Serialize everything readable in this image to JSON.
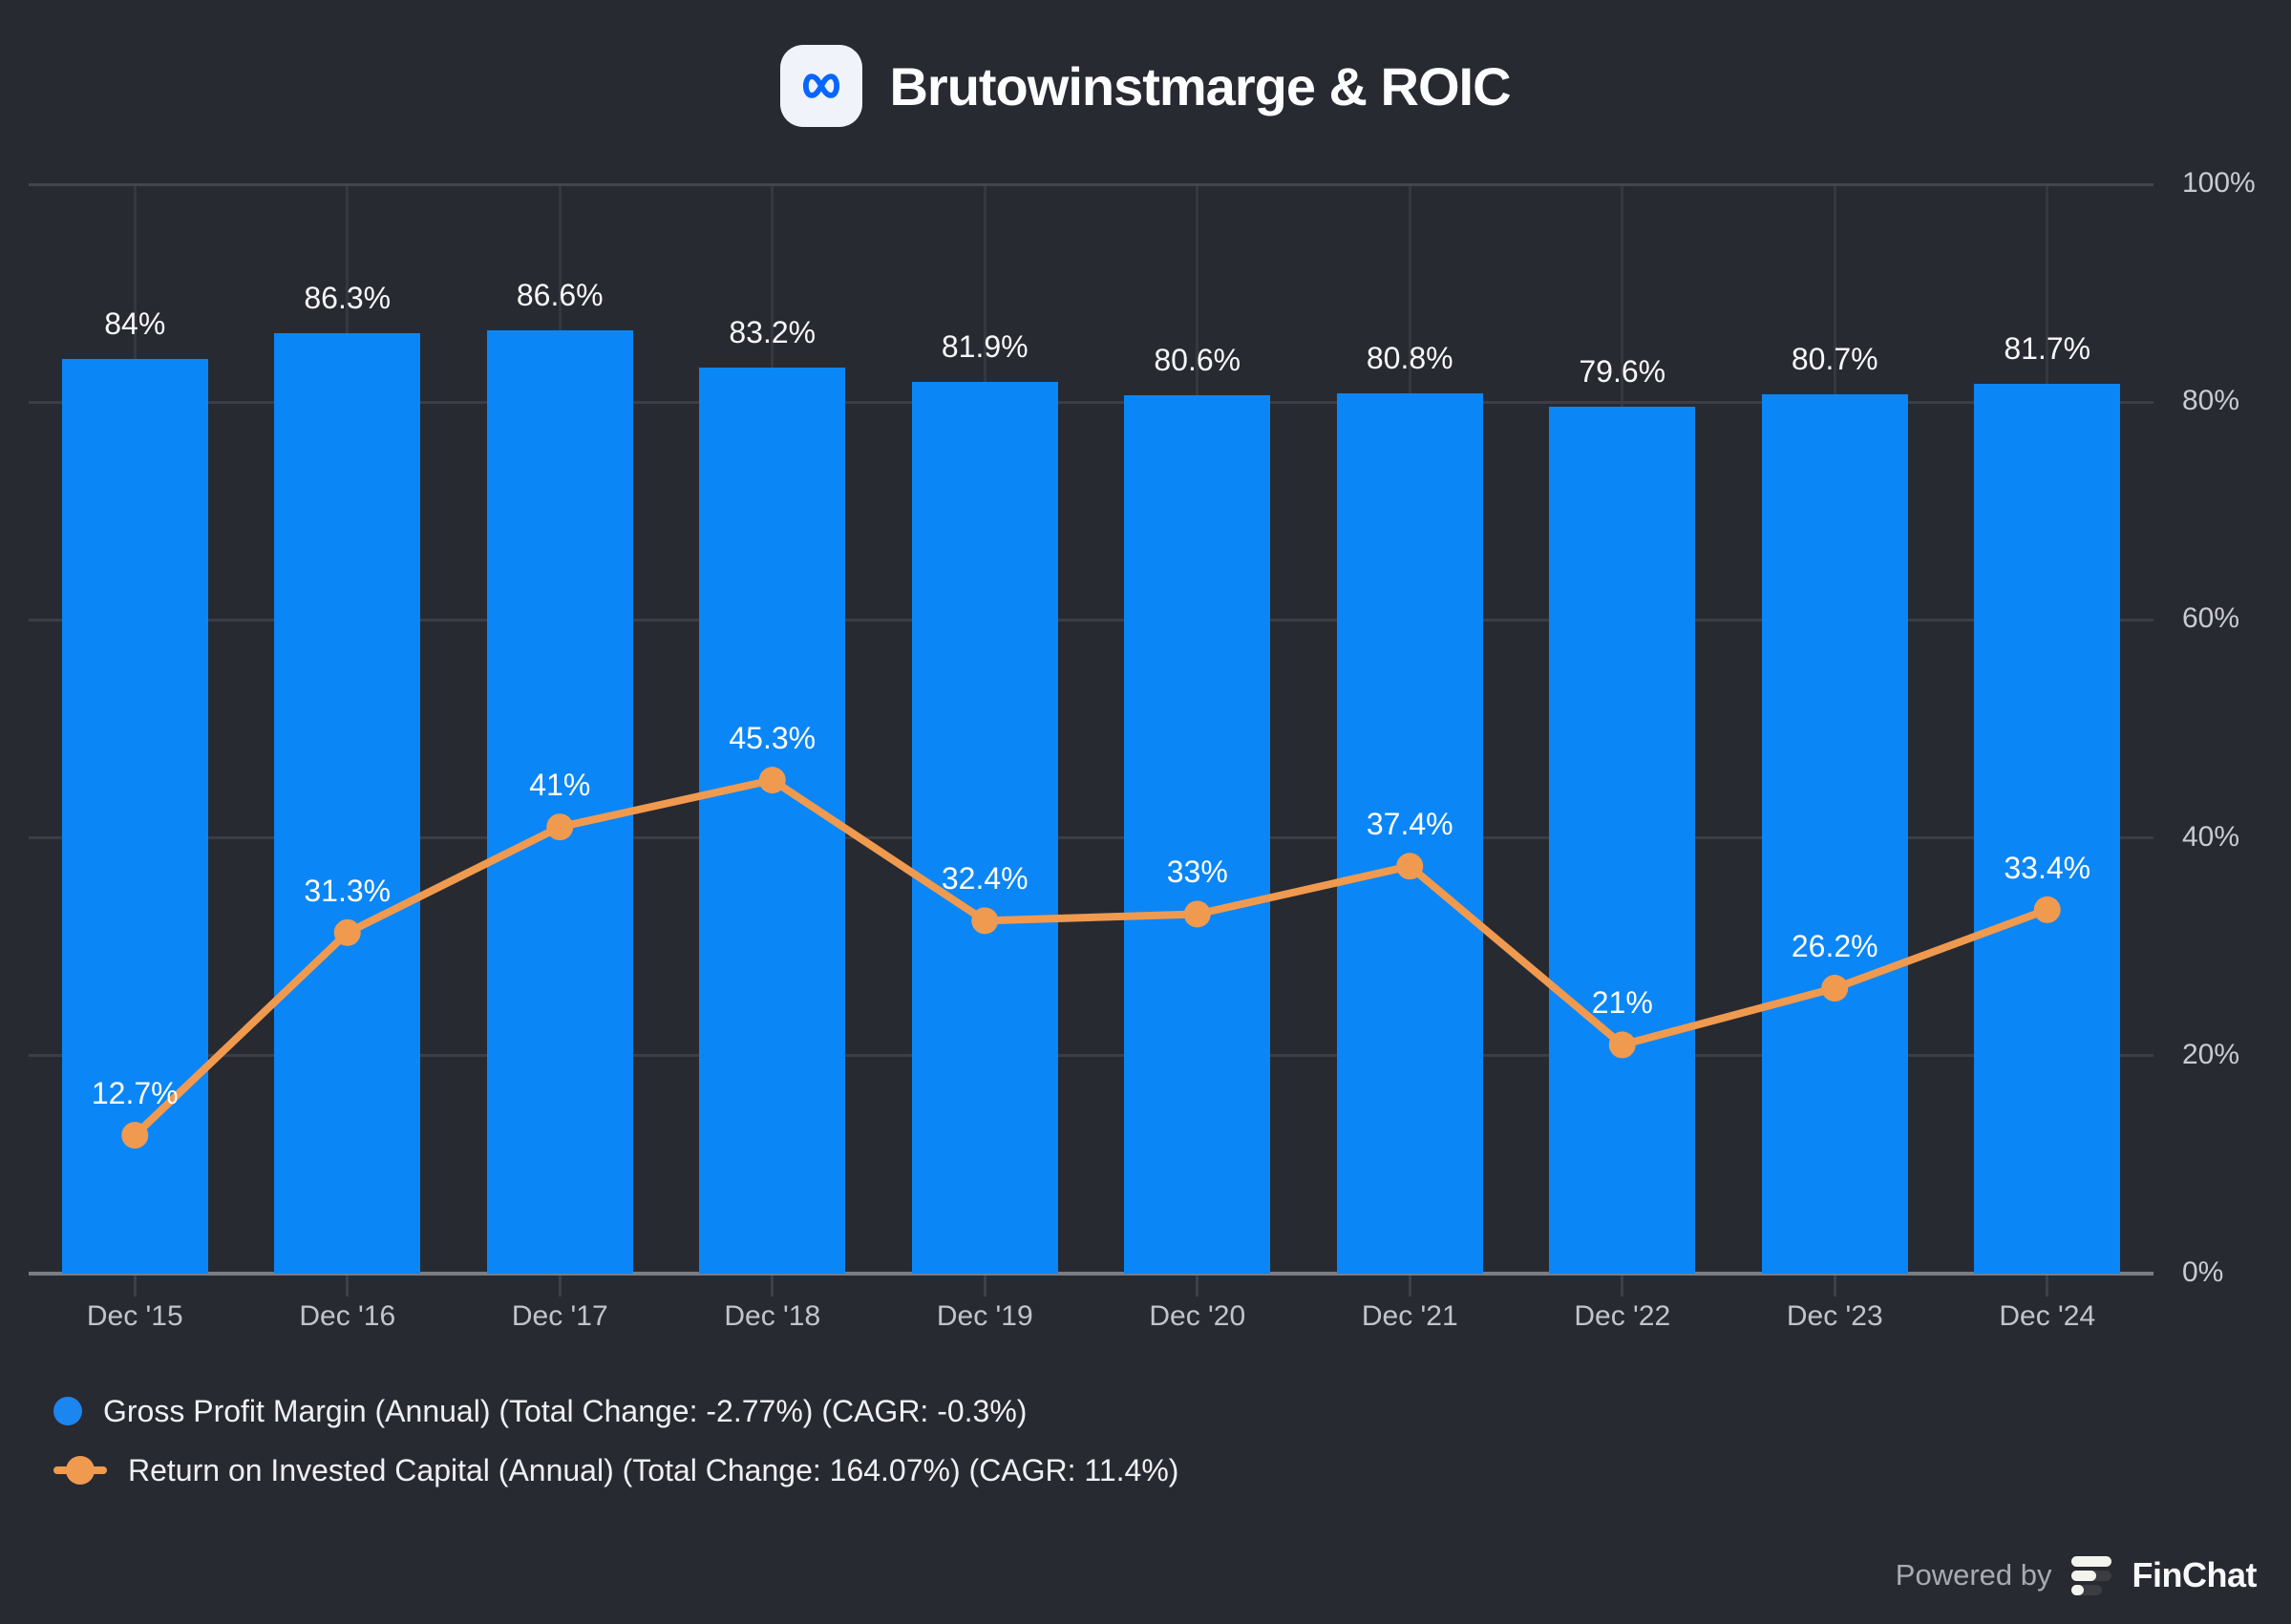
{
  "header": {
    "title": "Brutowinstmarge & ROIC",
    "logo_icon": "meta-logo-icon",
    "logo_color": "#0866ff"
  },
  "chart_data": {
    "type": "bar",
    "subtype": "combo-bar-line",
    "categories": [
      "Dec '15",
      "Dec '16",
      "Dec '17",
      "Dec '18",
      "Dec '19",
      "Dec '20",
      "Dec '21",
      "Dec '22",
      "Dec '23",
      "Dec '24"
    ],
    "series": [
      {
        "name": "Gross Profit Margin (Annual)",
        "type": "bar",
        "color": "#0b86f7",
        "values": [
          84,
          86.3,
          86.6,
          83.2,
          81.9,
          80.6,
          80.8,
          79.6,
          80.7,
          81.7
        ],
        "labels": [
          "84%",
          "86.3%",
          "86.6%",
          "83.2%",
          "81.9%",
          "80.6%",
          "80.8%",
          "79.6%",
          "80.7%",
          "81.7%"
        ]
      },
      {
        "name": "Return on Invested Capital (Annual)",
        "type": "line",
        "color": "#f09a4f",
        "values": [
          12.7,
          31.3,
          41,
          45.3,
          32.4,
          33,
          37.4,
          21,
          26.2,
          33.4
        ],
        "labels": [
          "12.7%",
          "31.3%",
          "41%",
          "45.3%",
          "32.4%",
          "33%",
          "37.4%",
          "21%",
          "26.2%",
          "33.4%"
        ]
      }
    ],
    "ylabel": "",
    "xlabel": "",
    "ylim": [
      0,
      100
    ],
    "y_ticks": [
      0,
      20,
      40,
      60,
      80,
      100
    ],
    "y_tick_labels": [
      "0%",
      "20%",
      "40%",
      "60%",
      "80%",
      "100%"
    ],
    "y_axis_position": "right",
    "grid": "on",
    "legend_position": "bottom-left",
    "legend": [
      {
        "label": "Gross Profit Margin (Annual) (Total Change: -2.77%) (CAGR: -0.3%)",
        "marker": "circle",
        "color": "#1c86f0"
      },
      {
        "label": "Return on Invested Capital (Annual) (Total Change: 164.07%) (CAGR: 11.4%)",
        "marker": "line-dot",
        "color": "#f09a4f"
      }
    ]
  },
  "footer": {
    "powered_by": "Powered by",
    "brand": "FinChat",
    "brand_icon": "finchat-logo-icon"
  }
}
